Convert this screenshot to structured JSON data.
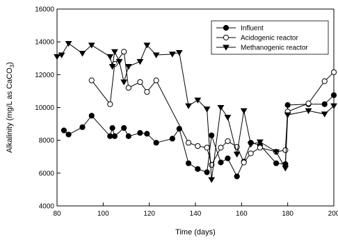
{
  "chart_data": {
    "type": "line",
    "xlabel": "Time (days)",
    "ylabel": {
      "main": "Alkalinity (mg/L as CaCO",
      "sub": "3",
      "end": ")"
    },
    "xlim": [
      80,
      200
    ],
    "ylim": [
      4000,
      16000
    ],
    "xticks": [
      80,
      100,
      120,
      140,
      160,
      180,
      200
    ],
    "yticks": [
      4000,
      6000,
      8000,
      10000,
      12000,
      14000,
      16000
    ],
    "grid": false,
    "legend_position": "top-right",
    "series": [
      {
        "name": "Influent",
        "marker": "filled-circle",
        "color": "#000000",
        "x": [
          83,
          85,
          91,
          95,
          103,
          104,
          105,
          109,
          111,
          116,
          119,
          123,
          130,
          133,
          137,
          141,
          145,
          147,
          151,
          154,
          158,
          161,
          164,
          168,
          175,
          179,
          180,
          189,
          196,
          200
        ],
        "y": [
          8600,
          8350,
          8800,
          9500,
          8250,
          8750,
          8250,
          8750,
          8250,
          8450,
          8400,
          7850,
          8100,
          8700,
          6600,
          6250,
          6050,
          8300,
          6650,
          6900,
          5800,
          6700,
          7850,
          7700,
          6600,
          6550,
          10150,
          10200,
          10200,
          10750
        ]
      },
      {
        "name": "Acidogenic reactor",
        "marker": "open-circle",
        "color": "#000000",
        "x": [
          95,
          103,
          105,
          109,
          111,
          116,
          119,
          123,
          137,
          141,
          145,
          147,
          151,
          154,
          158,
          161,
          164,
          168,
          175,
          179,
          180,
          189,
          196,
          200
        ],
        "y": [
          11650,
          10200,
          12650,
          13400,
          11200,
          11550,
          10950,
          11650,
          7850,
          7650,
          7550,
          6500,
          7550,
          7950,
          7600,
          6650,
          7200,
          7550,
          7300,
          7400,
          9750,
          10250,
          11600,
          12150
        ]
      },
      {
        "name": "Methanogenic reactor",
        "marker": "filled-triangle-down",
        "color": "#000000",
        "x": [
          80,
          82,
          85,
          91,
          95,
          103,
          104,
          105,
          107,
          109,
          111,
          116,
          119,
          123,
          130,
          133,
          137,
          141,
          145,
          147,
          151,
          154,
          158,
          161,
          164,
          168,
          175,
          179,
          180,
          189,
          196,
          200
        ],
        "y": [
          13100,
          13200,
          13900,
          13300,
          13800,
          13100,
          12500,
          13400,
          12800,
          11550,
          12500,
          12800,
          13800,
          13200,
          13250,
          13350,
          10100,
          10450,
          9900,
          5600,
          10000,
          9400,
          7150,
          9800,
          7750,
          7900,
          7300,
          6300,
          9550,
          9800,
          9600,
          10100
        ]
      }
    ]
  }
}
